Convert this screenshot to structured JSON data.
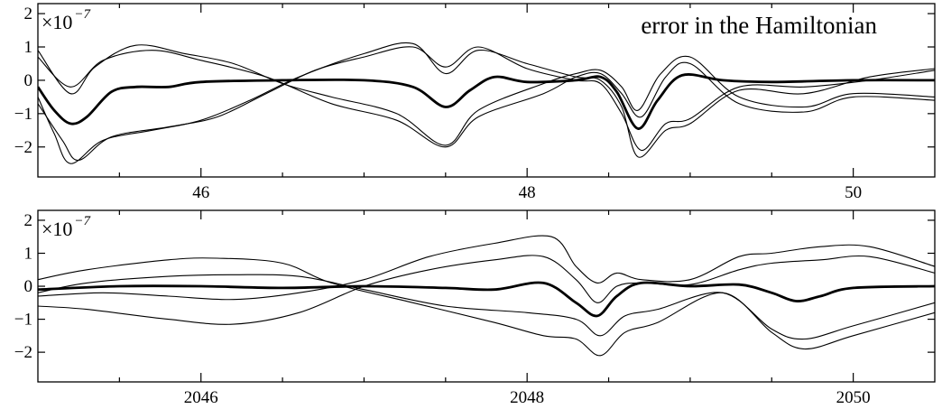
{
  "chart_data": [
    {
      "type": "line",
      "title": "error in the Hamiltonian",
      "y_scale_label": "×10",
      "y_scale_exponent": "−7",
      "xlim": [
        45,
        50.5
      ],
      "ylim": [
        -2.9,
        2.3
      ],
      "x_ticks": [
        46,
        48,
        50
      ],
      "x_minor_ticks": [
        45.5,
        46.5,
        47,
        47.5,
        48.5,
        49,
        49.5
      ],
      "y_ticks": [
        2,
        1,
        0,
        -1,
        -2
      ],
      "y_tick_labels": [
        "2",
        "1",
        "0",
        "−1",
        "−2"
      ],
      "grid": false,
      "series": [
        {
          "style": "thick",
          "points": [
            [
              45,
              -0.2
            ],
            [
              45.1,
              -0.9
            ],
            [
              45.2,
              -1.3
            ],
            [
              45.3,
              -1.1
            ],
            [
              45.45,
              -0.35
            ],
            [
              45.6,
              -0.2
            ],
            [
              45.8,
              -0.2
            ],
            [
              46,
              -0.05
            ],
            [
              46.5,
              0
            ],
            [
              47,
              0
            ],
            [
              47.3,
              -0.2
            ],
            [
              47.5,
              -0.8
            ],
            [
              47.65,
              -0.3
            ],
            [
              47.8,
              0.1
            ],
            [
              48,
              -0.05
            ],
            [
              48.3,
              0
            ],
            [
              48.45,
              0.1
            ],
            [
              48.55,
              -0.35
            ],
            [
              48.68,
              -1.45
            ],
            [
              48.8,
              -0.6
            ],
            [
              48.95,
              0.15
            ],
            [
              49.2,
              0
            ],
            [
              49.5,
              -0.05
            ],
            [
              50,
              0
            ],
            [
              50.5,
              0
            ]
          ]
        },
        {
          "style": "thin",
          "points": [
            [
              45,
              0.9
            ],
            [
              45.2,
              -0.4
            ],
            [
              45.35,
              0.4
            ],
            [
              45.6,
              1.05
            ],
            [
              45.9,
              0.8
            ],
            [
              46.2,
              0.5
            ],
            [
              46.5,
              -0.1
            ],
            [
              46.8,
              -0.5
            ],
            [
              47.2,
              -1.0
            ],
            [
              47.5,
              -1.95
            ],
            [
              47.7,
              -0.9
            ],
            [
              48.1,
              -0.1
            ],
            [
              48.3,
              0.2
            ],
            [
              48.45,
              0.3
            ],
            [
              48.58,
              -0.2
            ],
            [
              48.68,
              -0.9
            ],
            [
              48.82,
              0.2
            ],
            [
              49,
              0.7
            ],
            [
              49.3,
              -0.5
            ],
            [
              49.7,
              -0.8
            ],
            [
              50,
              -0.4
            ],
            [
              50.5,
              -0.5
            ]
          ]
        },
        {
          "style": "thin",
          "points": [
            [
              45,
              0.7
            ],
            [
              45.2,
              -0.2
            ],
            [
              45.4,
              0.6
            ],
            [
              45.7,
              0.9
            ],
            [
              46,
              0.6
            ],
            [
              46.4,
              0.1
            ],
            [
              46.8,
              -0.7
            ],
            [
              47.2,
              -1.2
            ],
            [
              47.5,
              -2.0
            ],
            [
              47.7,
              -1.1
            ],
            [
              48.1,
              -0.4
            ],
            [
              48.3,
              0.1
            ],
            [
              48.45,
              0.2
            ],
            [
              48.58,
              -0.4
            ],
            [
              48.7,
              -1.1
            ],
            [
              48.85,
              0.1
            ],
            [
              49,
              0.5
            ],
            [
              49.3,
              -0.7
            ],
            [
              49.7,
              -0.95
            ],
            [
              50,
              -0.5
            ],
            [
              50.5,
              -0.6
            ]
          ]
        },
        {
          "style": "thin",
          "points": [
            [
              45,
              -0.5
            ],
            [
              45.1,
              -1.6
            ],
            [
              45.2,
              -2.5
            ],
            [
              45.4,
              -1.8
            ],
            [
              45.7,
              -1.5
            ],
            [
              46,
              -1.2
            ],
            [
              46.3,
              -0.6
            ],
            [
              46.6,
              0.1
            ],
            [
              47,
              0.8
            ],
            [
              47.3,
              1.1
            ],
            [
              47.5,
              0.2
            ],
            [
              47.7,
              0.9
            ],
            [
              48,
              0.5
            ],
            [
              48.3,
              0.1
            ],
            [
              48.45,
              0
            ],
            [
              48.58,
              -0.8
            ],
            [
              48.68,
              -2.3
            ],
            [
              48.85,
              -1.5
            ],
            [
              49,
              -1.3
            ],
            [
              49.3,
              -0.3
            ],
            [
              49.7,
              -0.4
            ],
            [
              50.1,
              0.1
            ],
            [
              50.5,
              0.35
            ]
          ]
        },
        {
          "style": "thin",
          "points": [
            [
              45,
              -0.7
            ],
            [
              45.15,
              -1.8
            ],
            [
              45.25,
              -2.4
            ],
            [
              45.45,
              -1.7
            ],
            [
              45.8,
              -1.4
            ],
            [
              46.1,
              -1.1
            ],
            [
              46.4,
              -0.4
            ],
            [
              46.7,
              0.3
            ],
            [
              47,
              0.7
            ],
            [
              47.3,
              1.0
            ],
            [
              47.5,
              0.4
            ],
            [
              47.7,
              1.0
            ],
            [
              48,
              0.35
            ],
            [
              48.3,
              0
            ],
            [
              48.45,
              -0.1
            ],
            [
              48.58,
              -1.0
            ],
            [
              48.7,
              -2.1
            ],
            [
              48.85,
              -1.3
            ],
            [
              49,
              -1.15
            ],
            [
              49.3,
              -0.2
            ],
            [
              49.7,
              -0.2
            ],
            [
              50.1,
              0
            ],
            [
              50.5,
              0.3
            ]
          ]
        }
      ]
    },
    {
      "type": "line",
      "title": "",
      "y_scale_label": "×10",
      "y_scale_exponent": "−7",
      "xlim": [
        2045,
        2050.5
      ],
      "ylim": [
        -2.9,
        2.3
      ],
      "x_ticks": [
        2046,
        2048,
        2050
      ],
      "x_minor_ticks": [
        2045.5,
        2046.5,
        2047,
        2047.5,
        2048.5,
        2049,
        2049.5
      ],
      "y_ticks": [
        2,
        1,
        0,
        -1,
        -2
      ],
      "y_tick_labels": [
        "2",
        "1",
        "0",
        "−1",
        "−2"
      ],
      "grid": false,
      "series": [
        {
          "style": "thick",
          "points": [
            [
              2045,
              -0.1
            ],
            [
              2045.5,
              0
            ],
            [
              2046,
              0
            ],
            [
              2046.5,
              -0.05
            ],
            [
              2047,
              0
            ],
            [
              2047.5,
              -0.05
            ],
            [
              2047.8,
              -0.1
            ],
            [
              2048.1,
              0.1
            ],
            [
              2048.3,
              -0.5
            ],
            [
              2048.43,
              -0.9
            ],
            [
              2048.55,
              -0.3
            ],
            [
              2048.7,
              0.1
            ],
            [
              2049,
              0
            ],
            [
              2049.3,
              0.05
            ],
            [
              2049.5,
              -0.2
            ],
            [
              2049.65,
              -0.45
            ],
            [
              2049.8,
              -0.3
            ],
            [
              2050,
              -0.05
            ],
            [
              2050.5,
              0
            ]
          ]
        },
        {
          "style": "thin",
          "points": [
            [
              2045,
              0.2
            ],
            [
              2045.3,
              0.5
            ],
            [
              2045.8,
              0.8
            ],
            [
              2046.1,
              0.85
            ],
            [
              2046.5,
              0.7
            ],
            [
              2046.8,
              0.1
            ],
            [
              2047.3,
              -0.5
            ],
            [
              2047.8,
              -1.1
            ],
            [
              2048.1,
              -1.5
            ],
            [
              2048.3,
              -1.6
            ],
            [
              2048.45,
              -2.1
            ],
            [
              2048.6,
              -1.4
            ],
            [
              2048.8,
              -1.1
            ],
            [
              2049.2,
              -0.2
            ],
            [
              2049.5,
              -1.4
            ],
            [
              2049.7,
              -1.9
            ],
            [
              2050,
              -1.5
            ],
            [
              2050.5,
              -0.8
            ]
          ]
        },
        {
          "style": "thin",
          "points": [
            [
              2045,
              -0.2
            ],
            [
              2045.3,
              0.1
            ],
            [
              2045.8,
              0.3
            ],
            [
              2046.2,
              0.35
            ],
            [
              2046.6,
              0.3
            ],
            [
              2047,
              -0.1
            ],
            [
              2047.5,
              -0.6
            ],
            [
              2048,
              -0.8
            ],
            [
              2048.3,
              -1.0
            ],
            [
              2048.45,
              -1.5
            ],
            [
              2048.6,
              -0.9
            ],
            [
              2048.8,
              -0.7
            ],
            [
              2049.2,
              -0.2
            ],
            [
              2049.5,
              -1.3
            ],
            [
              2049.7,
              -1.6
            ],
            [
              2050,
              -1.2
            ],
            [
              2050.5,
              -0.5
            ]
          ]
        },
        {
          "style": "thin",
          "points": [
            [
              2045,
              -0.6
            ],
            [
              2045.3,
              -0.7
            ],
            [
              2045.8,
              -1.0
            ],
            [
              2046.2,
              -1.15
            ],
            [
              2046.6,
              -0.8
            ],
            [
              2047,
              0
            ],
            [
              2047.4,
              0.5
            ],
            [
              2047.8,
              0.8
            ],
            [
              2048.1,
              0.9
            ],
            [
              2048.3,
              0.2
            ],
            [
              2048.43,
              -0.5
            ],
            [
              2048.55,
              0
            ],
            [
              2048.7,
              0.1
            ],
            [
              2049,
              0.05
            ],
            [
              2049.3,
              0.5
            ],
            [
              2049.5,
              0.7
            ],
            [
              2049.8,
              0.8
            ],
            [
              2050.1,
              0.9
            ],
            [
              2050.5,
              0.4
            ]
          ]
        },
        {
          "style": "thin",
          "points": [
            [
              2045,
              -0.3
            ],
            [
              2045.4,
              -0.2
            ],
            [
              2045.8,
              -0.3
            ],
            [
              2046.2,
              -0.4
            ],
            [
              2046.6,
              -0.2
            ],
            [
              2047,
              0.2
            ],
            [
              2047.4,
              0.9
            ],
            [
              2047.8,
              1.3
            ],
            [
              2048.15,
              1.5
            ],
            [
              2048.3,
              0.6
            ],
            [
              2048.43,
              0.1
            ],
            [
              2048.55,
              0.4
            ],
            [
              2048.7,
              0.2
            ],
            [
              2049,
              0.2
            ],
            [
              2049.3,
              0.9
            ],
            [
              2049.5,
              1.0
            ],
            [
              2049.8,
              1.2
            ],
            [
              2050.1,
              1.2
            ],
            [
              2050.5,
              0.6
            ]
          ]
        }
      ]
    }
  ]
}
